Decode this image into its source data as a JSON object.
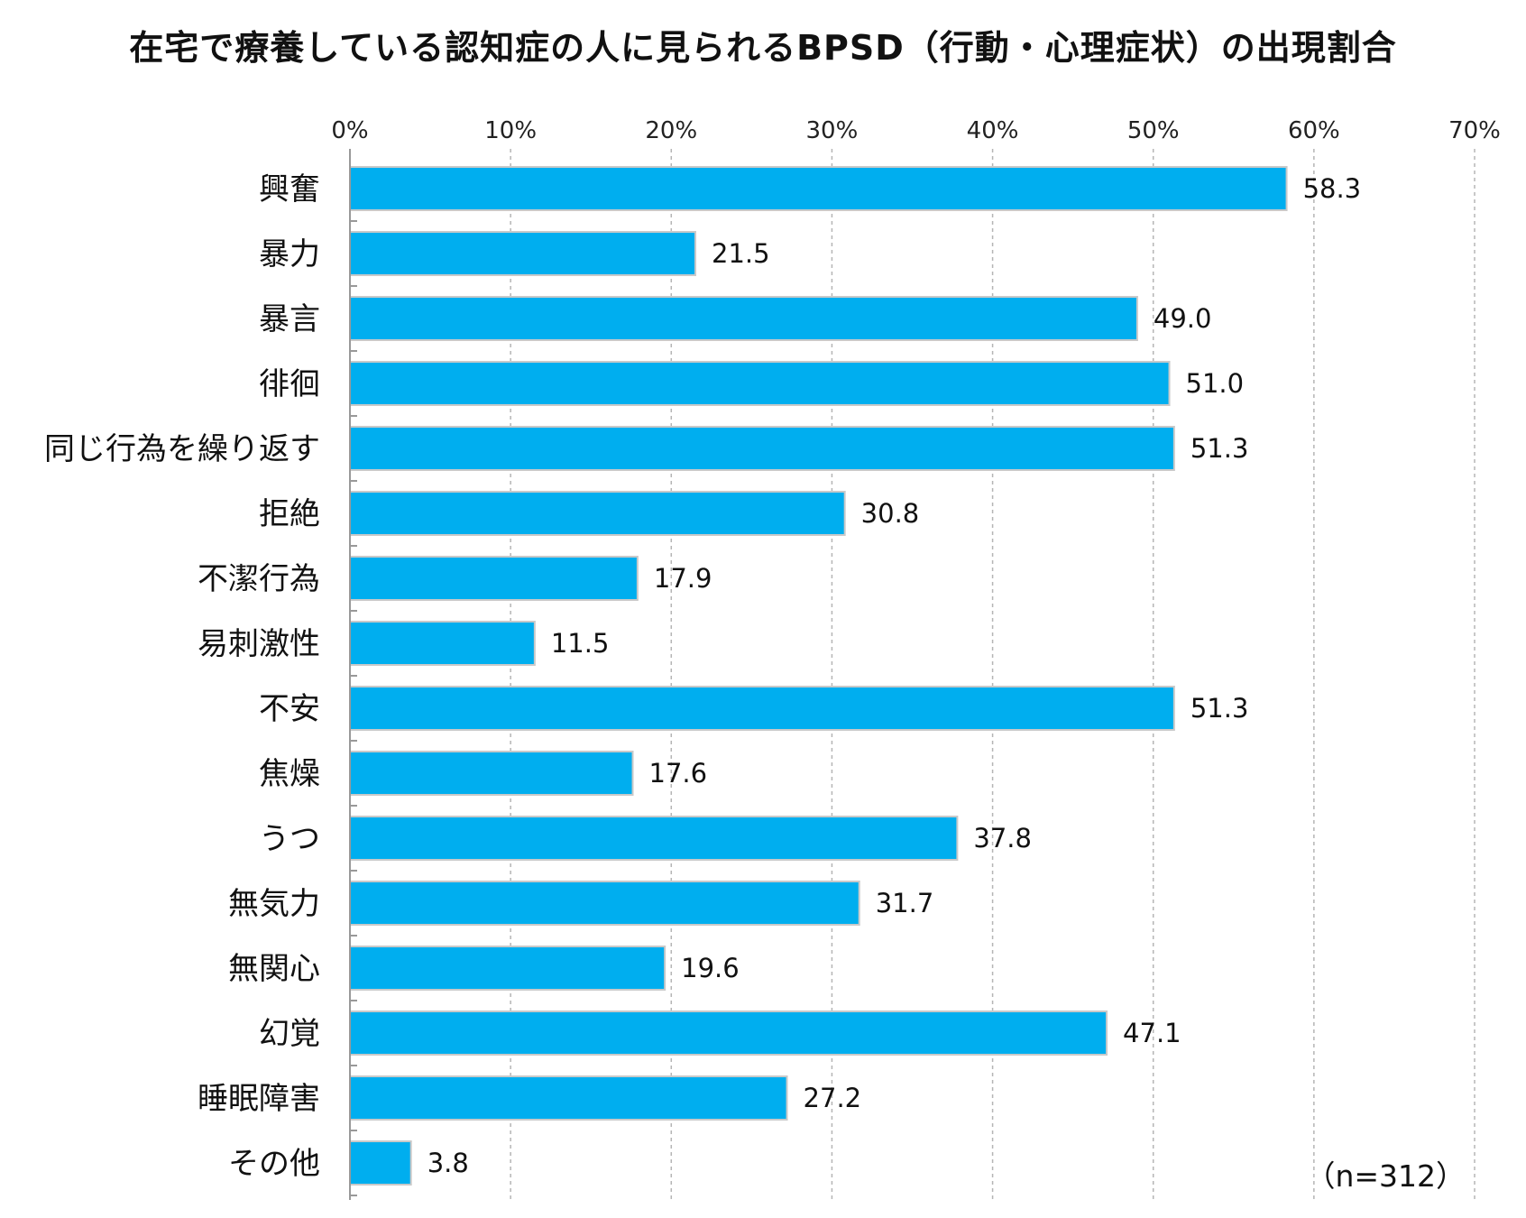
{
  "chart_data": {
    "type": "bar",
    "orientation": "horizontal",
    "title": "在宅で療養している認知症の人に見られるBPSD（行動・心理症状）の出現割合",
    "categories": [
      "興奮",
      "暴力",
      "暴言",
      "徘徊",
      "同じ行為を繰り返す",
      "拒絶",
      "不潔行為",
      "易刺激性",
      "不安",
      "焦燥",
      "うつ",
      "無気力",
      "無関心",
      "幻覚",
      "睡眠障害",
      "その他"
    ],
    "values": [
      58.3,
      21.5,
      49.0,
      51.0,
      51.3,
      30.8,
      17.9,
      11.5,
      51.3,
      17.6,
      37.8,
      31.7,
      19.6,
      47.1,
      27.2,
      3.8
    ],
    "value_labels": [
      "58.3",
      "21.5",
      "49.0",
      "51.0",
      "51.3",
      "30.8",
      "17.9",
      "11.5",
      "51.3",
      "17.6",
      "37.8",
      "31.7",
      "19.6",
      "47.1",
      "27.2",
      "3.8"
    ],
    "x_ticks": [
      "0%",
      "10%",
      "20%",
      "30%",
      "40%",
      "50%",
      "60%",
      "70%"
    ],
    "xlim": [
      0,
      70
    ],
    "x_axis_position": "top",
    "grid": "vertical dashed",
    "bar_color": "#00aeef",
    "note": "（n=312）"
  }
}
